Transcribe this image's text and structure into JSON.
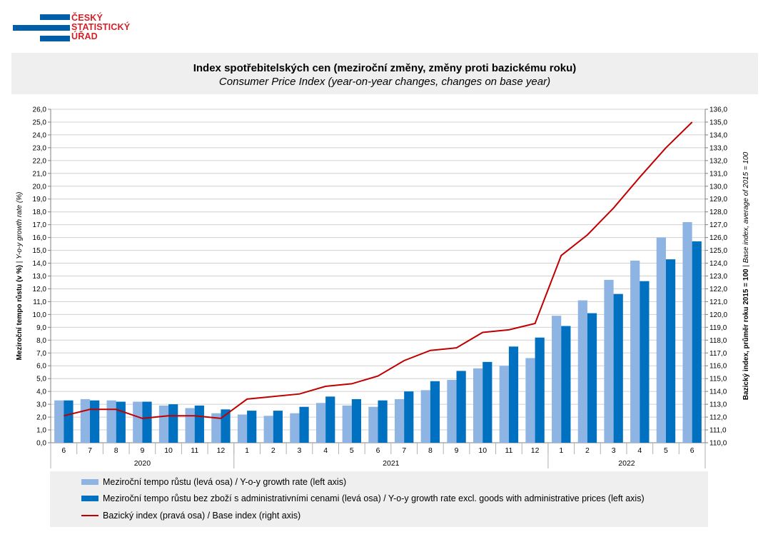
{
  "logo": {
    "lines": [
      "ČESKÝ",
      "STATISTICKÝ",
      "ÚŘAD"
    ]
  },
  "header": {
    "title": "Index spotřebitelských cen (meziroční změny, změny proti bazickému roku)",
    "subtitle": "Consumer Price Index (year-on-year changes, changes on base year)"
  },
  "colors": {
    "light_bar": "#8db4e2",
    "dark_bar": "#0070c0",
    "line": "#c00000",
    "logo": "#d41f26",
    "logo_bars": "#005ea8"
  },
  "legend": {
    "items": [
      {
        "label": "Meziroční tempo růstu (levá osa) / Y-o-y growth rate (left axis)"
      },
      {
        "label": "Meziroční tempo růstu bez zboží s administrativními cenami (levá osa) / Y-o-y growth rate excl. goods with administrative prices (left axis)"
      },
      {
        "label": "Bazický index (pravá osa) / Base index (right axis)"
      }
    ]
  },
  "chart_data": {
    "type": "bar",
    "categories": [
      "6",
      "7",
      "8",
      "9",
      "10",
      "11",
      "12",
      "1",
      "2",
      "3",
      "4",
      "5",
      "6",
      "7",
      "8",
      "9",
      "10",
      "11",
      "12",
      "1",
      "2",
      "3",
      "4",
      "5",
      "6"
    ],
    "year_groups": [
      {
        "label": "2020",
        "count": 7
      },
      {
        "label": "2021",
        "count": 12
      },
      {
        "label": "2022",
        "count": 6
      }
    ],
    "ylabel_left": {
      "bold": "Meziroční tempo růstu (v %)",
      "italic": "Y-o-y growth rate (%)"
    },
    "ylabel_right": {
      "bold": "Bazický index, průměr roku 2015 = 100",
      "italic": "Base index, average of 2015 = 100"
    },
    "ylim_left": [
      0,
      26
    ],
    "ystep_left": 1,
    "ylim_right": [
      110,
      136
    ],
    "ystep_right": 1,
    "grid": true,
    "legend_position": "bottom",
    "series": [
      {
        "name": "Meziroční tempo růstu (levá osa) / Y-o-y growth rate (left axis)",
        "kind": "bar",
        "axis": "left",
        "values": [
          3.3,
          3.4,
          3.3,
          3.2,
          2.9,
          2.7,
          2.3,
          2.2,
          2.1,
          2.3,
          3.1,
          2.9,
          2.8,
          3.4,
          4.1,
          4.9,
          5.8,
          6.0,
          6.6,
          9.9,
          11.1,
          12.7,
          14.2,
          16.0,
          17.2
        ]
      },
      {
        "name": "Meziroční tempo růstu bez zboží s administrativními cenami (levá osa) / Y-o-y growth rate excl. goods with administrative prices (left axis)",
        "kind": "bar",
        "axis": "left",
        "values": [
          3.3,
          3.3,
          3.2,
          3.2,
          3.0,
          2.9,
          2.6,
          2.5,
          2.5,
          2.8,
          3.6,
          3.4,
          3.3,
          4.0,
          4.8,
          5.6,
          6.3,
          7.5,
          8.2,
          9.1,
          10.1,
          11.6,
          12.6,
          14.3,
          15.7
        ]
      },
      {
        "name": "Bazický index (pravá osa) / Base index (right axis)",
        "kind": "line",
        "axis": "right",
        "values": [
          112.1,
          112.6,
          112.6,
          111.9,
          112.1,
          112.1,
          111.9,
          113.4,
          113.6,
          113.8,
          114.4,
          114.6,
          115.2,
          116.4,
          117.2,
          117.4,
          118.6,
          118.8,
          119.3,
          124.6,
          126.2,
          128.3,
          130.7,
          133.0,
          135.0
        ]
      }
    ]
  }
}
